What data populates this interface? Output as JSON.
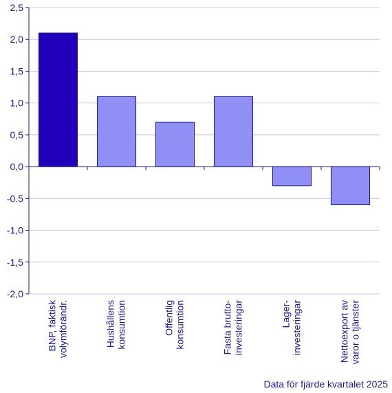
{
  "chart_data": {
    "type": "bar",
    "categories": [
      [
        "BNP, faktisk",
        "volymförändr."
      ],
      [
        "Hushållens",
        "konsumtion"
      ],
      [
        "Offentlig",
        "konsumtion"
      ],
      [
        "Fasta brutto-",
        "investeringar"
      ],
      [
        "Lager-",
        "investeringar"
      ],
      [
        "Nettoexport av",
        "varor o tjänster"
      ]
    ],
    "values": [
      2.1,
      1.1,
      0.7,
      1.1,
      -0.3,
      -0.6
    ],
    "ylim": [
      -2.0,
      2.5
    ],
    "yticks": [
      "2,5",
      "2,0",
      "1,5",
      "1,0",
      "0,5",
      "0,0",
      "-0.5",
      "-1,0",
      "-1,5",
      "-2,0"
    ],
    "ytick_values": [
      2.5,
      2.0,
      1.5,
      1.0,
      0.5,
      0.0,
      -0.5,
      -1.0,
      -1.5,
      -2.0
    ],
    "grid": true,
    "colors": {
      "highlight": "#2200bb",
      "bar": "#8f8ff5",
      "bar_stroke": "#1a1a80",
      "grid": "#c8c8e6",
      "axis": "#1a1a80",
      "text": "#1a1a99"
    },
    "title": "",
    "xlabel": "",
    "ylabel": ""
  },
  "footnote": "Data för fjärde kvartalet 2025"
}
